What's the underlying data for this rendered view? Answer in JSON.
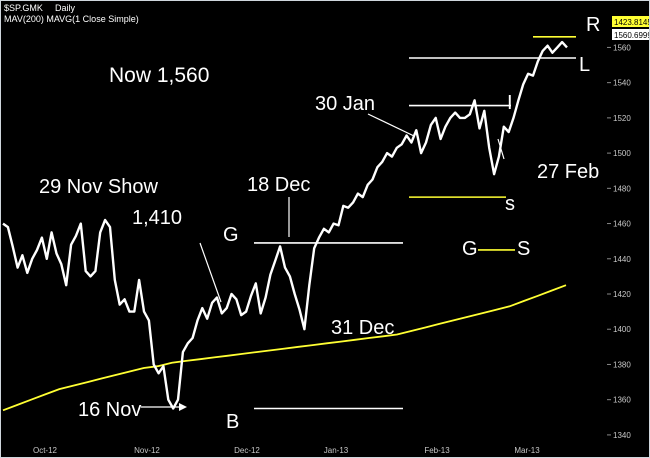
{
  "header": {
    "symbol": "$SP.GMK",
    "period": "Daily",
    "indicator": "MAV(200) MAVG(1 Close Simple)"
  },
  "chart_data": {
    "type": "line",
    "x_ticks": [
      "Oct-12",
      "Nov-12",
      "Dec-12",
      "Jan-13",
      "Feb-13",
      "Mar-13"
    ],
    "y_ticks": [
      1340,
      1360,
      1380,
      1400,
      1420,
      1440,
      1460,
      1480,
      1500,
      1520,
      1540,
      1560
    ],
    "ylim": [
      1332,
      1575
    ],
    "price_tag": 1560.69995,
    "ma_tag": 1423.81455,
    "price_tag_label": "1560.69995",
    "ma_tag_label": "1423.81455",
    "series": [
      {
        "values": [
          1460,
          1458,
          1447,
          1435,
          1442,
          1432,
          1440,
          1445,
          1452,
          1440,
          1455,
          1443,
          1437,
          1425,
          1448,
          1453,
          1460,
          1433,
          1430,
          1433,
          1455,
          1462,
          1458,
          1428,
          1414,
          1417,
          1410,
          1410,
          1428,
          1410,
          1405,
          1380,
          1375,
          1379,
          1360,
          1355,
          1360,
          1387,
          1392,
          1395,
          1405,
          1412,
          1406,
          1415,
          1418,
          1409,
          1412,
          1420,
          1417,
          1408,
          1410,
          1419,
          1426,
          1409,
          1418,
          1431,
          1439,
          1447,
          1435,
          1430,
          1420,
          1411,
          1400,
          1425,
          1446,
          1452,
          1457,
          1455,
          1460,
          1459,
          1470,
          1469,
          1472,
          1477,
          1475,
          1482,
          1485,
          1492,
          1495,
          1500,
          1498,
          1503,
          1505,
          1510,
          1506,
          1513,
          1500,
          1506,
          1516,
          1520,
          1508,
          1515,
          1520,
          1523,
          1520,
          1520,
          1522,
          1530,
          1514,
          1524,
          1503,
          1488,
          1498,
          1515,
          1512,
          1520,
          1530,
          1539,
          1545,
          1544,
          1552,
          1558,
          1561,
          1557,
          1560,
          1563,
          1560
        ]
      },
      {
        "values": [
          1354,
          1357,
          1360,
          1363,
          1366,
          1368,
          1370,
          1372,
          1374,
          1376,
          1378,
          1379,
          1381,
          1382,
          1383,
          1384,
          1385,
          1386,
          1387,
          1388,
          1389,
          1390,
          1391,
          1392,
          1393,
          1394,
          1395,
          1396,
          1397,
          1399,
          1401,
          1403,
          1405,
          1407,
          1409,
          1411,
          1413,
          1416,
          1419,
          1422,
          1425
        ]
      }
    ],
    "levels": [
      {
        "label": "R",
        "value": 1566
      },
      {
        "label": "L",
        "value": 1554
      },
      {
        "label": "I",
        "value": 1527
      },
      {
        "label": "s",
        "value": 1475
      },
      {
        "label": "G",
        "value": 1449
      },
      {
        "label": "S",
        "value": 1445
      },
      {
        "label": "B",
        "value": 1355
      }
    ],
    "annotations": [
      {
        "text": "Now 1,560"
      },
      {
        "text": "30 Jan"
      },
      {
        "text": "29 Nov Show"
      },
      {
        "text": "18 Dec"
      },
      {
        "text": "1,410"
      },
      {
        "text": "G"
      },
      {
        "text": "31 Dec"
      },
      {
        "text": "27 Feb"
      },
      {
        "text": "G"
      },
      {
        "text": "S"
      },
      {
        "text": "s"
      },
      {
        "text": "16 Nov"
      },
      {
        "text": "B"
      },
      {
        "text": "R"
      },
      {
        "text": "L"
      },
      {
        "text": "I"
      }
    ]
  }
}
